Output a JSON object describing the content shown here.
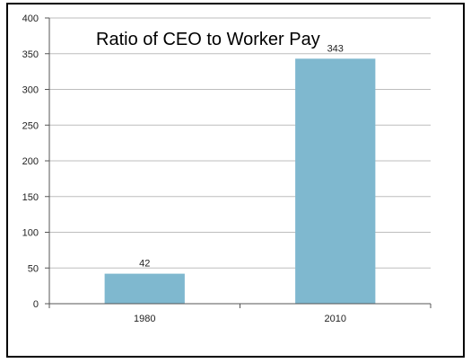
{
  "chart_data": {
    "type": "bar",
    "title": "Ratio of CEO to Worker Pay",
    "categories": [
      "1980",
      "2010"
    ],
    "values": [
      42,
      343
    ],
    "data_labels": [
      "42",
      "343"
    ],
    "y_ticks": [
      "0",
      "50",
      "100",
      "150",
      "200",
      "250",
      "300",
      "350",
      "400"
    ],
    "ylim": [
      0,
      400
    ],
    "xlabel": "",
    "ylabel": "",
    "grid": true,
    "legend": "none",
    "bar_color": "#7fb8cf"
  }
}
